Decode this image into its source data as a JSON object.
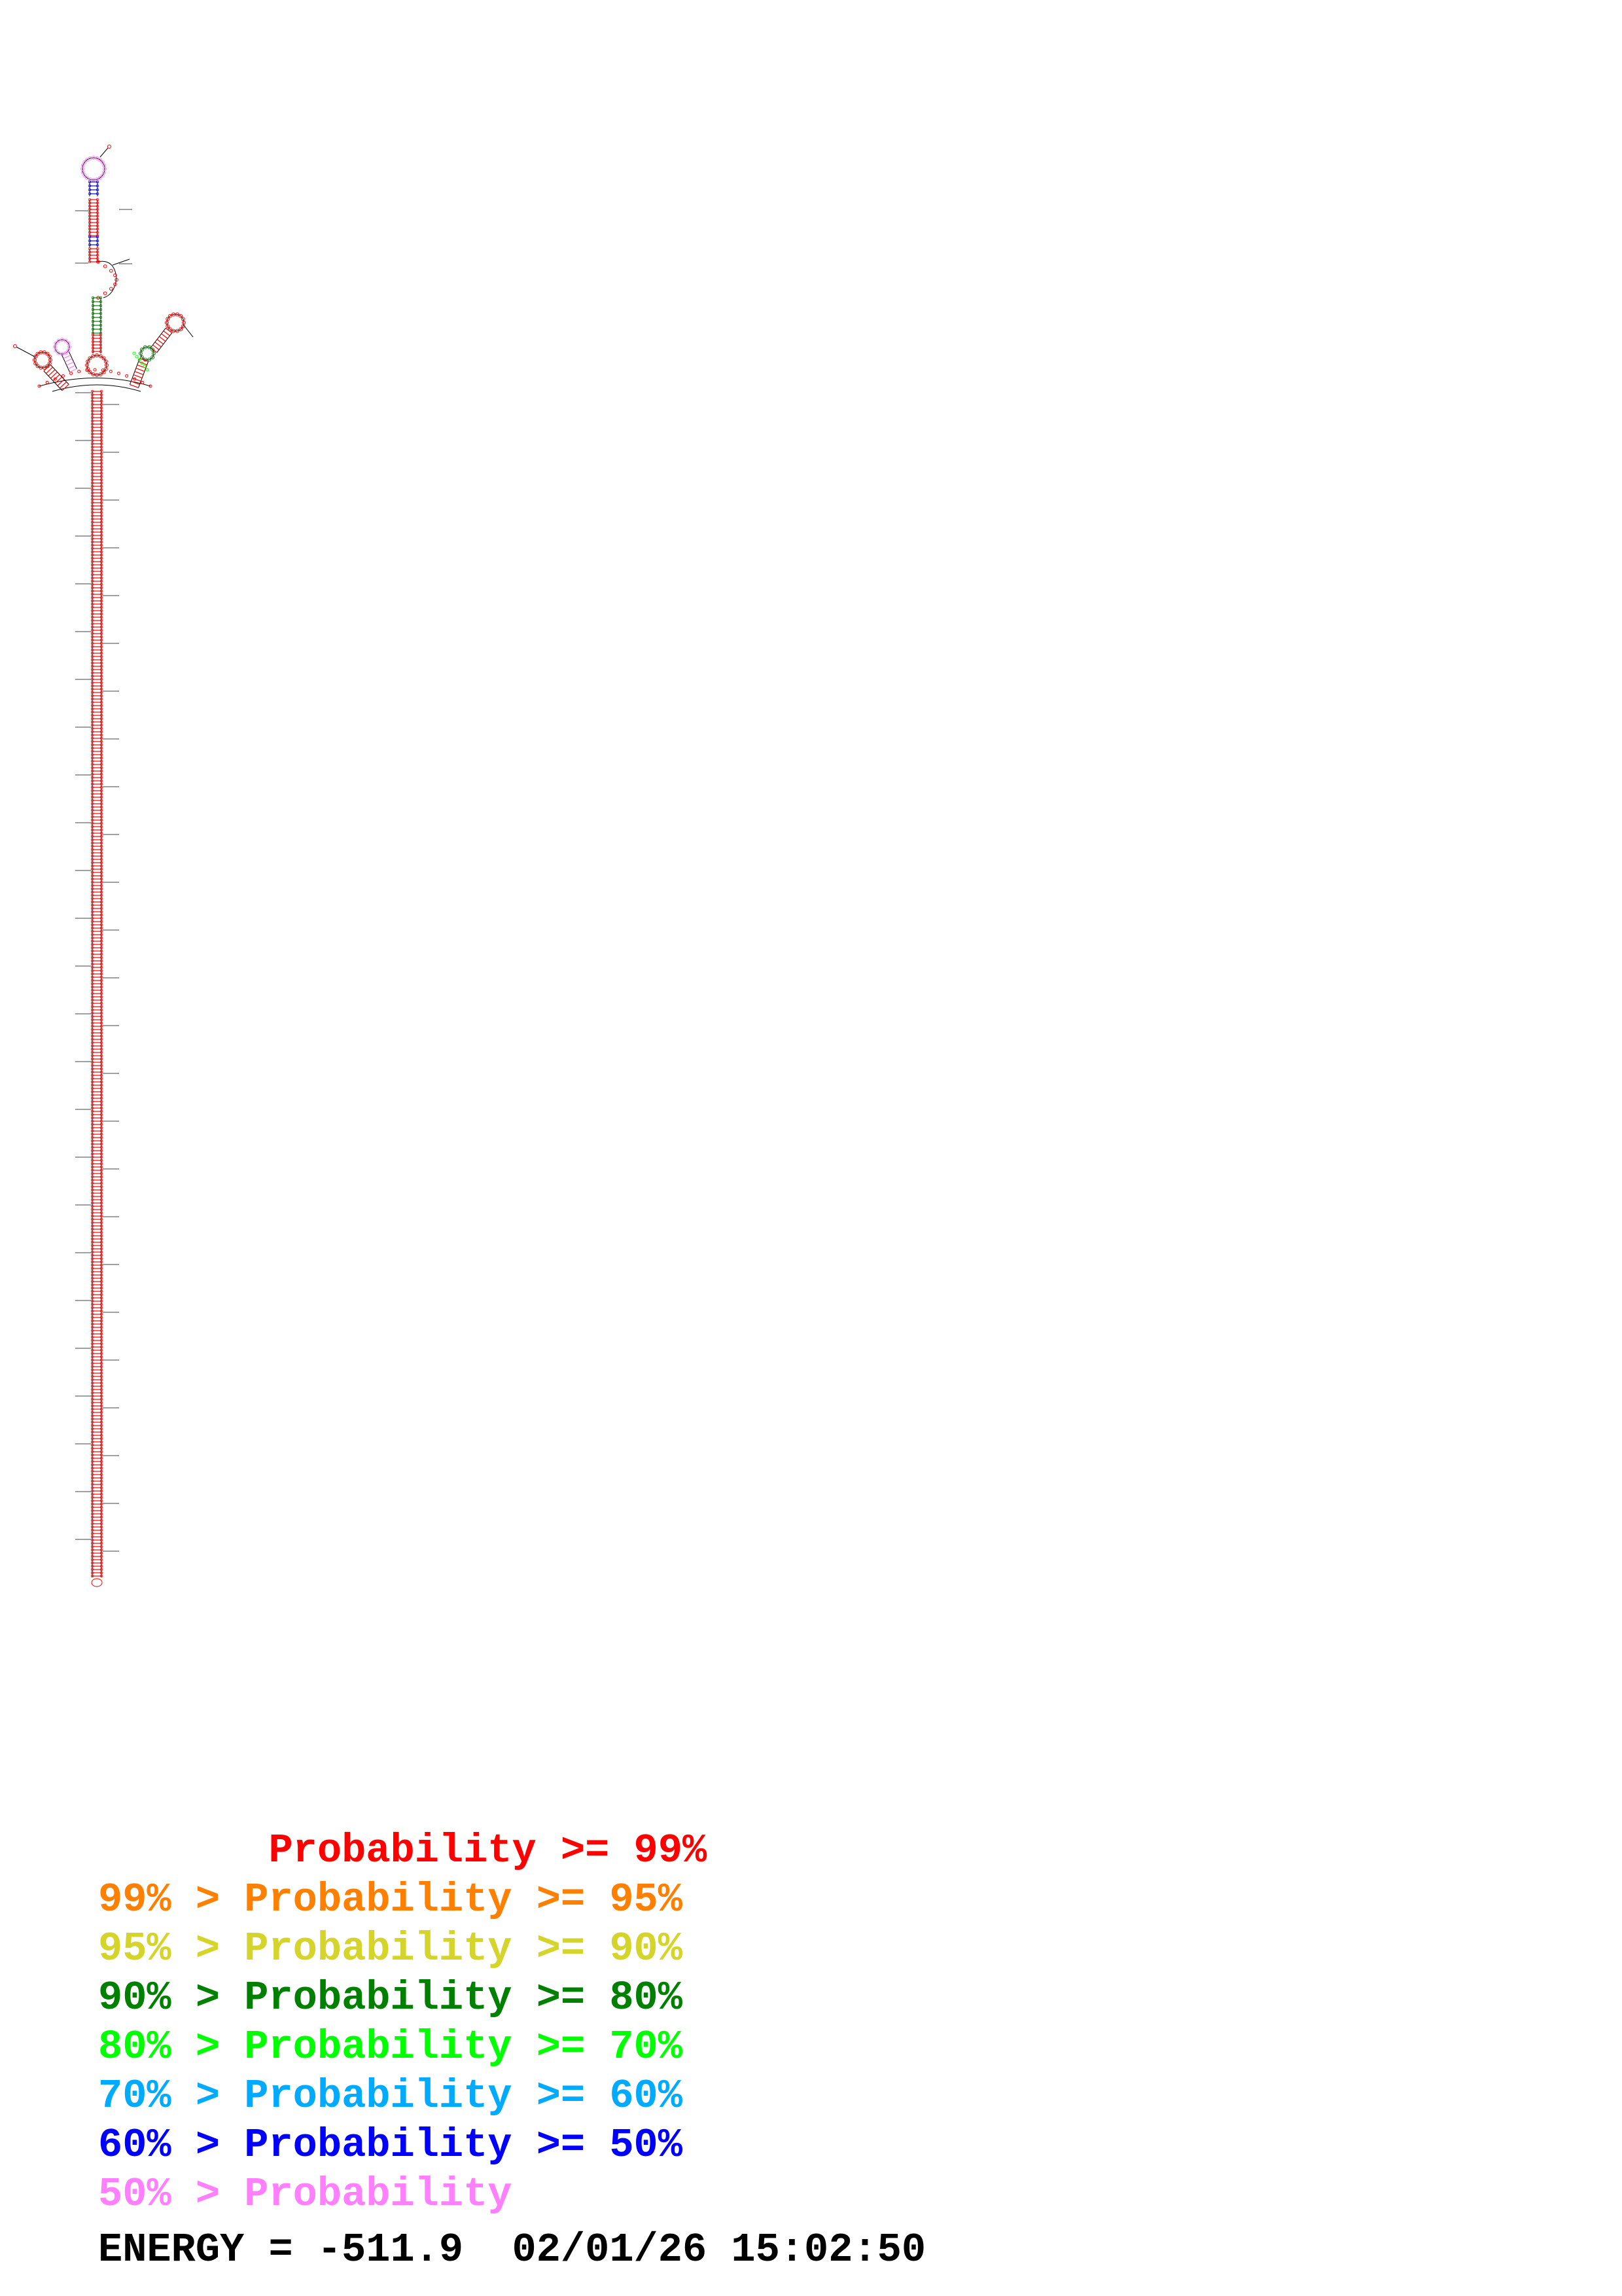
{
  "legend": [
    {
      "prefix": "       ",
      "label": "Probability >= 99%",
      "color": "#ff0000"
    },
    {
      "prefix": "99% > ",
      "label": "Probability >= 95%",
      "color": "#ff7f00"
    },
    {
      "prefix": "95% > ",
      "label": "Probability >= 90%",
      "color": "#d4d42a"
    },
    {
      "prefix": "90% > ",
      "label": "Probability >= 80%",
      "color": "#008000"
    },
    {
      "prefix": "80% > ",
      "label": "Probability >= 70%",
      "color": "#00ff00"
    },
    {
      "prefix": "70% > ",
      "label": "Probability >= 60%",
      "color": "#00aaff"
    },
    {
      "prefix": "60% > ",
      "label": "Probability >= 50%",
      "color": "#0000ff"
    },
    {
      "prefix": "50% > ",
      "label": "Probability",
      "color": "#ff80ff"
    }
  ],
  "footer": {
    "energy": "ENERGY = -511.9",
    "timestamp": "02/01/26 15:02:50"
  },
  "structure_colors": {
    "stem": "#ff0000",
    "outline": "#000000",
    "green_region": "#008000",
    "blue_region": "#0000ff",
    "pink_region": "#ff80ff",
    "lime_region": "#00ff00"
  }
}
